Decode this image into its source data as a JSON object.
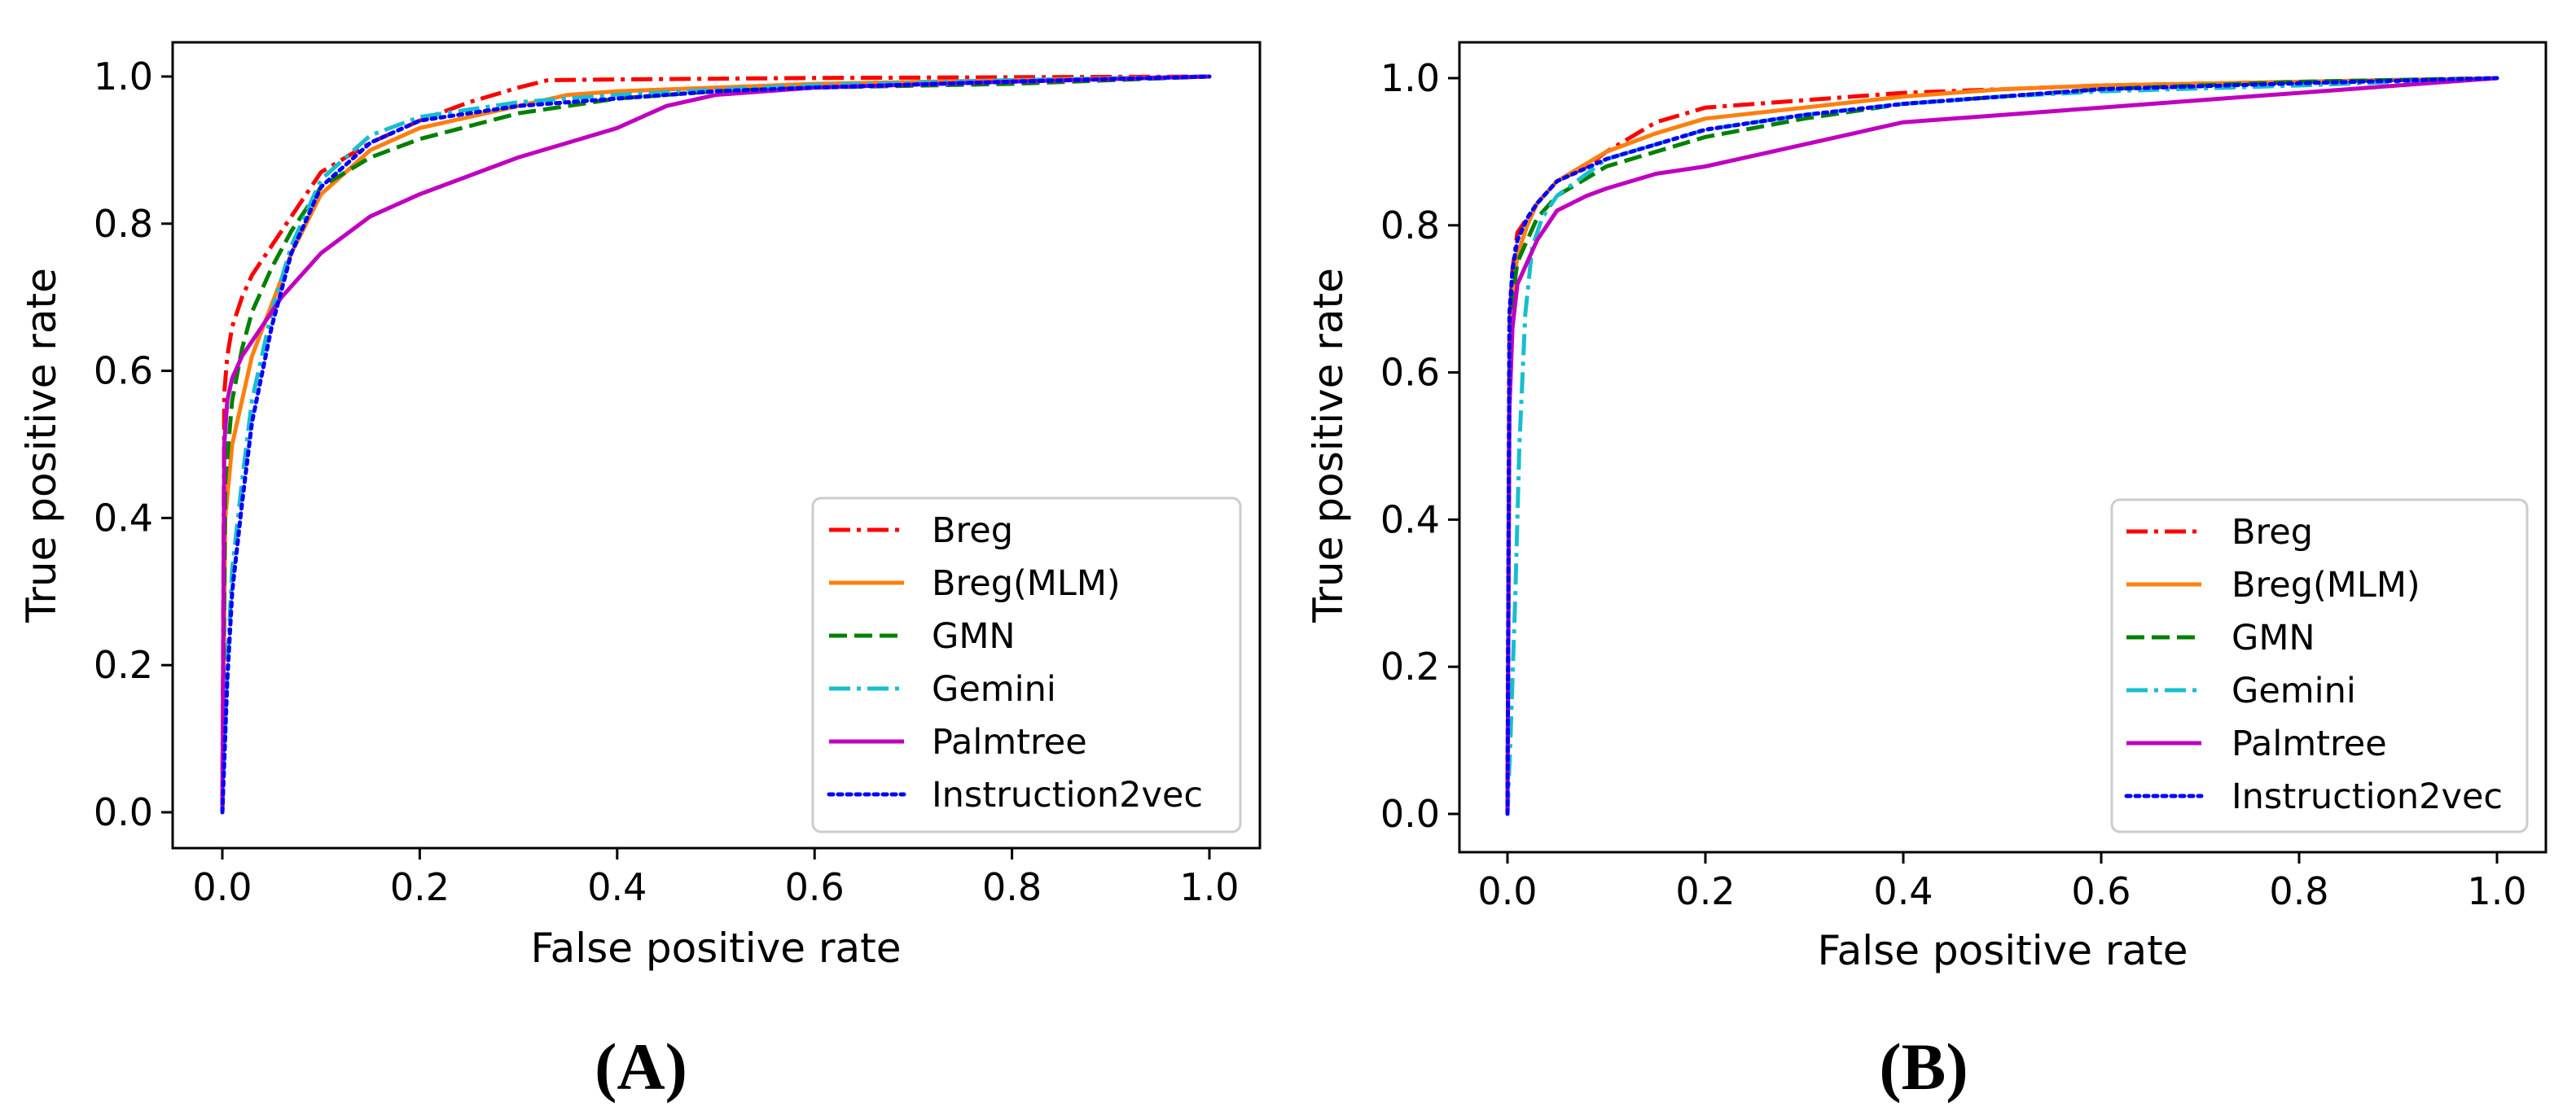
{
  "chart_data": [
    {
      "type": "line",
      "panel_label": "(A)",
      "xlabel": "False positive rate",
      "ylabel": "True positive rate",
      "xlim": [
        -0.05,
        1.05
      ],
      "ylim": [
        -0.05,
        1.05
      ],
      "xticks": [
        0.0,
        0.2,
        0.4,
        0.6,
        0.8,
        1.0
      ],
      "yticks": [
        0.0,
        0.2,
        0.4,
        0.6,
        0.8,
        1.0
      ],
      "xtick_labels": [
        "0.0",
        "0.2",
        "0.4",
        "0.6",
        "0.8",
        "1.0"
      ],
      "ytick_labels": [
        "0.0",
        "0.2",
        "0.4",
        "0.6",
        "0.8",
        "1.0"
      ],
      "grid": false,
      "legend_position": "lower-right",
      "series": [
        {
          "name": "Breg",
          "color": "#ff0000",
          "dash": "dashdot",
          "x": [
            0,
            0.002,
            0.005,
            0.01,
            0.02,
            0.03,
            0.05,
            0.07,
            0.1,
            0.15,
            0.2,
            0.25,
            0.3,
            0.33,
            0.4,
            0.5,
            0.6,
            0.8,
            1.0
          ],
          "y": [
            0,
            0.57,
            0.62,
            0.66,
            0.7,
            0.73,
            0.77,
            0.81,
            0.87,
            0.91,
            0.94,
            0.965,
            0.985,
            0.995,
            0.996,
            0.997,
            0.998,
            0.999,
            1.0
          ]
        },
        {
          "name": "Breg(MLM)",
          "color": "#ff7f0e",
          "dash": "solid",
          "x": [
            0,
            0.003,
            0.01,
            0.02,
            0.03,
            0.05,
            0.07,
            0.1,
            0.15,
            0.2,
            0.3,
            0.35,
            0.4,
            0.5,
            0.6,
            0.8,
            1.0
          ],
          "y": [
            0,
            0.4,
            0.5,
            0.56,
            0.62,
            0.69,
            0.76,
            0.84,
            0.9,
            0.93,
            0.96,
            0.975,
            0.98,
            0.985,
            0.99,
            0.995,
            1.0
          ]
        },
        {
          "name": "GMN",
          "color": "#008000",
          "dash": "dashed",
          "x": [
            0,
            0.003,
            0.01,
            0.02,
            0.03,
            0.05,
            0.07,
            0.1,
            0.15,
            0.2,
            0.3,
            0.4,
            0.5,
            0.6,
            0.8,
            1.0
          ],
          "y": [
            0,
            0.45,
            0.56,
            0.63,
            0.68,
            0.74,
            0.79,
            0.85,
            0.89,
            0.915,
            0.95,
            0.97,
            0.98,
            0.985,
            0.99,
            1.0
          ]
        },
        {
          "name": "Gemini",
          "color": "#17becf",
          "dash": "dashdot",
          "x": [
            0,
            0.005,
            0.01,
            0.02,
            0.03,
            0.05,
            0.07,
            0.1,
            0.15,
            0.2,
            0.3,
            0.4,
            0.5,
            0.6,
            0.8,
            1.0
          ],
          "y": [
            0,
            0.2,
            0.33,
            0.45,
            0.56,
            0.68,
            0.77,
            0.86,
            0.92,
            0.945,
            0.965,
            0.975,
            0.982,
            0.988,
            0.995,
            1.0
          ]
        },
        {
          "name": "Palmtree",
          "color": "#bf00bf",
          "dash": "solid",
          "x": [
            0,
            0.002,
            0.005,
            0.01,
            0.02,
            0.04,
            0.06,
            0.1,
            0.15,
            0.2,
            0.3,
            0.35,
            0.4,
            0.45,
            0.5,
            0.6,
            0.8,
            1.0
          ],
          "y": [
            0,
            0.5,
            0.56,
            0.59,
            0.62,
            0.66,
            0.7,
            0.76,
            0.81,
            0.84,
            0.89,
            0.91,
            0.93,
            0.96,
            0.975,
            0.985,
            0.993,
            1.0
          ]
        },
        {
          "name": "Instruction2vec",
          "color": "#0000ff",
          "dash": "dotted",
          "x": [
            0,
            0.005,
            0.01,
            0.02,
            0.03,
            0.05,
            0.07,
            0.1,
            0.15,
            0.2,
            0.3,
            0.4,
            0.5,
            0.6,
            0.8,
            1.0
          ],
          "y": [
            0,
            0.18,
            0.3,
            0.42,
            0.53,
            0.66,
            0.76,
            0.85,
            0.91,
            0.94,
            0.96,
            0.97,
            0.98,
            0.985,
            0.993,
            1.0
          ]
        }
      ]
    },
    {
      "type": "line",
      "panel_label": "(B)",
      "xlabel": "False positive rate",
      "ylabel": "True positive rate",
      "xlim": [
        -0.05,
        1.05
      ],
      "ylim": [
        -0.05,
        1.05
      ],
      "xticks": [
        0.0,
        0.2,
        0.4,
        0.6,
        0.8,
        1.0
      ],
      "yticks": [
        0.0,
        0.2,
        0.4,
        0.6,
        0.8,
        1.0
      ],
      "xtick_labels": [
        "0.0",
        "0.2",
        "0.4",
        "0.6",
        "0.8",
        "1.0"
      ],
      "ytick_labels": [
        "0.0",
        "0.2",
        "0.4",
        "0.6",
        "0.8",
        "1.0"
      ],
      "grid": false,
      "legend_position": "lower-right",
      "series": [
        {
          "name": "Breg",
          "color": "#ff0000",
          "dash": "dashdot",
          "x": [
            0,
            0.002,
            0.005,
            0.01,
            0.02,
            0.03,
            0.05,
            0.08,
            0.1,
            0.15,
            0.2,
            0.3,
            0.4,
            0.5,
            0.6,
            0.8,
            1.0
          ],
          "y": [
            0,
            0.66,
            0.74,
            0.79,
            0.81,
            0.83,
            0.86,
            0.88,
            0.9,
            0.94,
            0.96,
            0.97,
            0.98,
            0.985,
            0.99,
            0.995,
            1.0
          ]
        },
        {
          "name": "Breg(MLM)",
          "color": "#ff7f0e",
          "dash": "solid",
          "x": [
            0,
            0.002,
            0.005,
            0.01,
            0.02,
            0.03,
            0.05,
            0.1,
            0.15,
            0.2,
            0.3,
            0.4,
            0.5,
            0.6,
            0.8,
            1.0
          ],
          "y": [
            0,
            0.62,
            0.7,
            0.76,
            0.8,
            0.83,
            0.86,
            0.9,
            0.925,
            0.945,
            0.96,
            0.975,
            0.985,
            0.99,
            0.995,
            1.0
          ]
        },
        {
          "name": "GMN",
          "color": "#008000",
          "dash": "dashed",
          "x": [
            0,
            0.002,
            0.005,
            0.01,
            0.02,
            0.03,
            0.05,
            0.1,
            0.15,
            0.2,
            0.3,
            0.4,
            0.5,
            0.6,
            0.8,
            1.0
          ],
          "y": [
            0,
            0.6,
            0.7,
            0.75,
            0.78,
            0.81,
            0.84,
            0.88,
            0.9,
            0.92,
            0.945,
            0.965,
            0.975,
            0.985,
            0.995,
            1.0
          ]
        },
        {
          "name": "Gemini",
          "color": "#17becf",
          "dash": "dashdot",
          "x": [
            0,
            0.003,
            0.008,
            0.012,
            0.018,
            0.025,
            0.035,
            0.05,
            0.1,
            0.2,
            0.3,
            0.4,
            0.5,
            0.6,
            0.8,
            1.0
          ],
          "y": [
            0,
            0.1,
            0.3,
            0.5,
            0.68,
            0.77,
            0.81,
            0.84,
            0.89,
            0.93,
            0.95,
            0.965,
            0.975,
            0.982,
            0.99,
            1.0
          ]
        },
        {
          "name": "Palmtree",
          "color": "#bf00bf",
          "dash": "solid",
          "x": [
            0,
            0.002,
            0.005,
            0.01,
            0.02,
            0.03,
            0.05,
            0.08,
            0.1,
            0.15,
            0.2,
            0.3,
            0.4,
            0.5,
            0.6,
            0.7,
            0.8,
            1.0
          ],
          "y": [
            0,
            0.55,
            0.66,
            0.72,
            0.75,
            0.78,
            0.82,
            0.84,
            0.85,
            0.87,
            0.88,
            0.91,
            0.94,
            0.95,
            0.96,
            0.97,
            0.98,
            1.0
          ]
        },
        {
          "name": "Instruction2vec",
          "color": "#0000ff",
          "dash": "dotted",
          "x": [
            0,
            0.002,
            0.005,
            0.01,
            0.02,
            0.03,
            0.05,
            0.1,
            0.15,
            0.2,
            0.3,
            0.4,
            0.5,
            0.6,
            0.8,
            1.0
          ],
          "y": [
            0,
            0.68,
            0.74,
            0.78,
            0.81,
            0.83,
            0.86,
            0.89,
            0.91,
            0.93,
            0.95,
            0.965,
            0.975,
            0.985,
            0.993,
            1.0
          ]
        }
      ]
    }
  ]
}
